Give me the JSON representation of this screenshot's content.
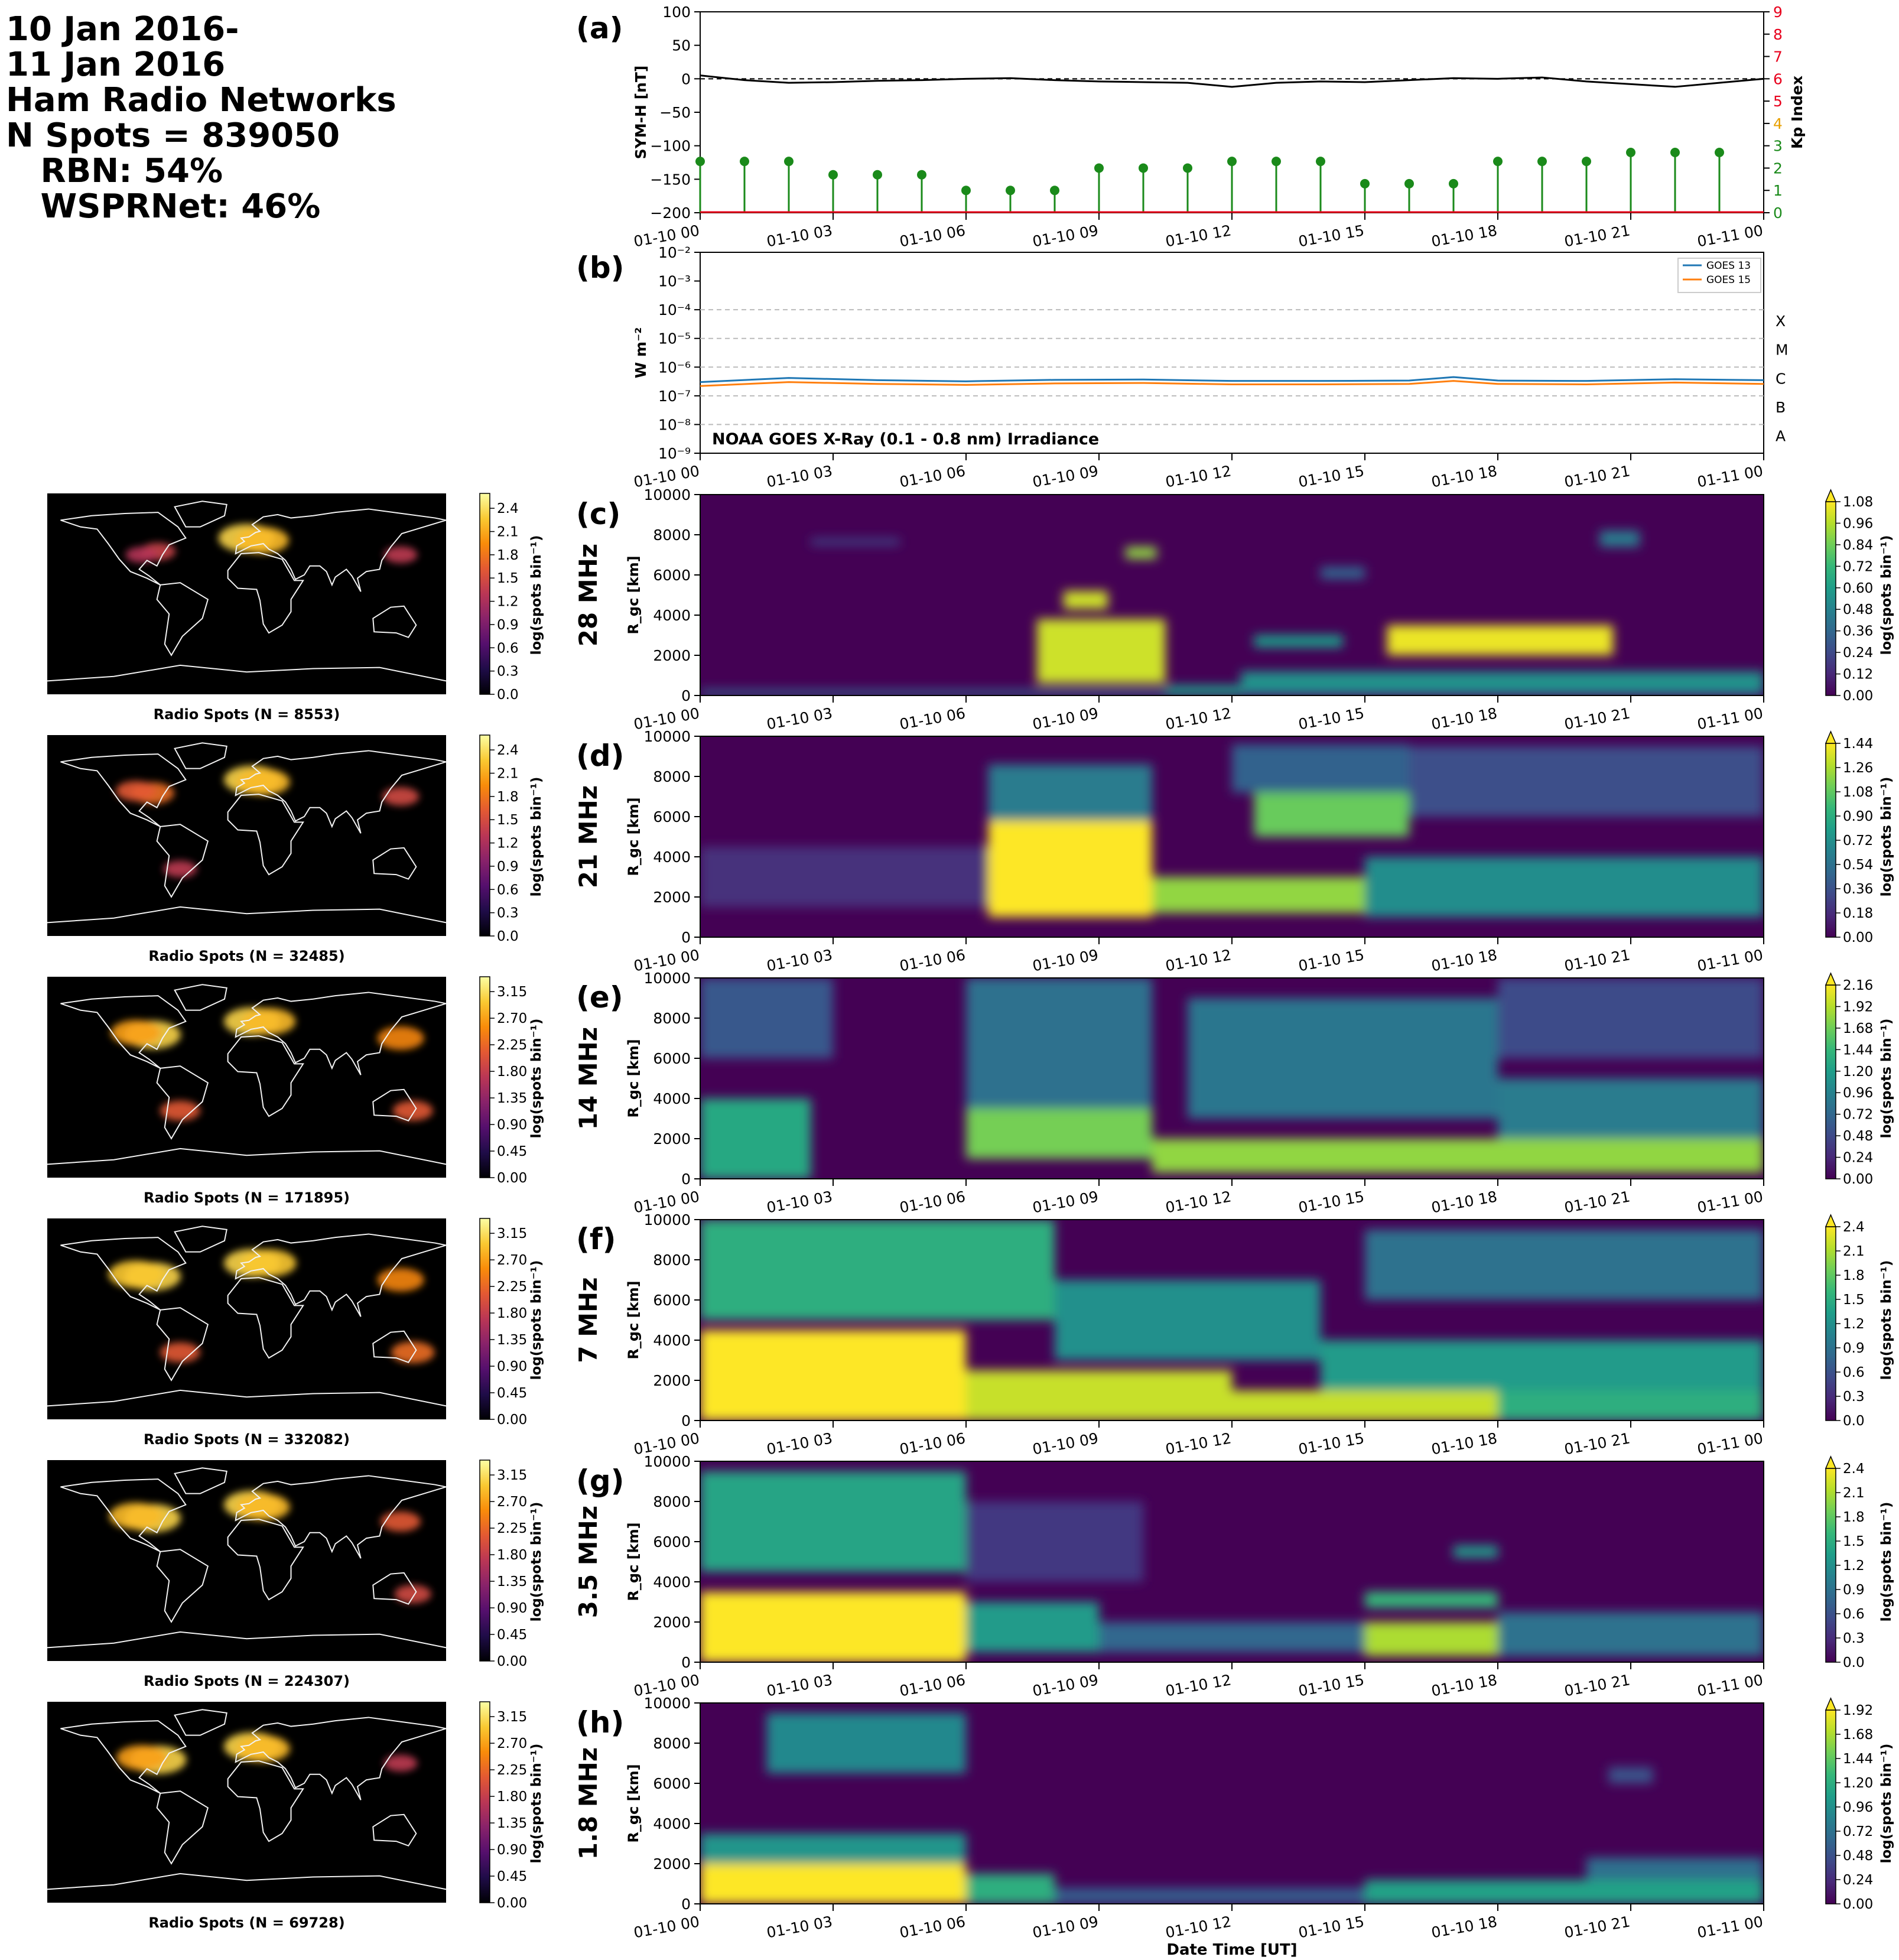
{
  "header": {
    "lines": [
      "10 Jan 2016-",
      "11 Jan 2016",
      "Ham Radio Networks",
      "N Spots = 839050",
      "   RBN: 54%",
      "   WSPRNet: 46%"
    ]
  },
  "time_ticks": [
    "01-10 00",
    "01-10 03",
    "01-10 06",
    "01-10 09",
    "01-10 12",
    "01-10 15",
    "01-10 18",
    "01-10 21",
    "01-11 00"
  ],
  "xlabel_bottom": "Date Time [UT]",
  "colors": {
    "symh_line": "#000000",
    "kp_stem": "#1a8a1a",
    "goes13": "#1f77b4",
    "goes15": "#ff7f0e",
    "kp_axis_red": "#e8001c",
    "kp_axis_orange": "#e8a000",
    "kp_axis_green": "#1a8a1a"
  },
  "chart_data": [
    {
      "id": "a",
      "label": "(a)",
      "type": "line",
      "ylabel": "SYM-H [nT]",
      "ylim": [
        -200,
        100
      ],
      "yticks": [
        "100",
        "50",
        "0",
        "−50",
        "−100",
        "−150",
        "−200"
      ],
      "x_hours": [
        0,
        1,
        2,
        3,
        4,
        5,
        6,
        7,
        8,
        9,
        10,
        11,
        12,
        13,
        14,
        15,
        16,
        17,
        18,
        19,
        20,
        21,
        22,
        23,
        24
      ],
      "symh": [
        5,
        -2,
        -6,
        -5,
        -3,
        -2,
        0,
        1,
        -2,
        -4,
        -5,
        -6,
        -12,
        -6,
        -4,
        -5,
        -2,
        1,
        0,
        2,
        -4,
        -8,
        -12,
        -6,
        0
      ],
      "y2label": "Kp Index",
      "y2lim": [
        0,
        9
      ],
      "y2ticks": [
        "0",
        "1",
        "2",
        "3",
        "4",
        "5",
        "6",
        "7",
        "8",
        "9"
      ],
      "kp_x_hours": [
        0,
        1,
        2,
        3,
        4,
        5,
        6,
        7,
        8,
        9,
        10,
        11,
        12,
        13,
        14,
        15,
        16,
        17,
        18,
        19,
        20,
        21,
        22,
        23
      ],
      "kp": [
        2.3,
        2.3,
        2.3,
        1.7,
        1.7,
        1.7,
        1.0,
        1.0,
        1.0,
        2.0,
        2.0,
        2.0,
        2.3,
        2.3,
        2.3,
        1.3,
        1.3,
        1.3,
        2.3,
        2.3,
        2.3,
        2.7,
        2.7,
        2.7
      ]
    },
    {
      "id": "b",
      "label": "(b)",
      "type": "line",
      "ylabel": "W m⁻²",
      "log_scale": true,
      "ylim": [
        1e-09,
        0.01
      ],
      "yticks": [
        "10⁻²",
        "10⁻³",
        "10⁻⁴",
        "10⁻⁵",
        "10⁻⁶",
        "10⁻⁷",
        "10⁻⁸",
        "10⁻⁹"
      ],
      "flare_classes": [
        "X",
        "M",
        "C",
        "B",
        "A"
      ],
      "annotation": "NOAA GOES X-Ray (0.1 - 0.8 nm) Irradiance",
      "legend": [
        "GOES 13",
        "GOES 15"
      ],
      "legend_position": "top-right",
      "series": [
        {
          "name": "GOES 13",
          "x_hours": [
            0,
            2,
            4,
            6,
            8,
            10,
            12,
            14,
            16,
            17,
            18,
            20,
            22,
            24
          ],
          "values": [
            3e-07,
            4.2e-07,
            3.5e-07,
            3.2e-07,
            3.6e-07,
            3.7e-07,
            3.3e-07,
            3.3e-07,
            3.4e-07,
            4.5e-07,
            3.4e-07,
            3.3e-07,
            3.8e-07,
            3.5e-07
          ]
        },
        {
          "name": "GOES 15",
          "x_hours": [
            0,
            2,
            4,
            6,
            8,
            10,
            12,
            14,
            16,
            17,
            18,
            20,
            22,
            24
          ],
          "values": [
            2.2e-07,
            3e-07,
            2.6e-07,
            2.4e-07,
            2.7e-07,
            2.8e-07,
            2.5e-07,
            2.5e-07,
            2.6e-07,
            3.3e-07,
            2.6e-07,
            2.5e-07,
            2.9e-07,
            2.6e-07
          ]
        }
      ]
    },
    {
      "id": "c",
      "label": "(c)",
      "type": "heatmap",
      "band": "28 MHz",
      "ylabel": "R_gc [km]",
      "ylim": [
        0,
        10000
      ],
      "yticks": [
        "10000",
        "8000",
        "6000",
        "4000",
        "2000",
        "0"
      ],
      "cbar_label": "log(spots bin⁻¹)",
      "cbar_max": 1.08,
      "cbar_ticks": [
        "1.08",
        "0.96",
        "0.84",
        "0.72",
        "0.60",
        "0.48",
        "0.36",
        "0.24",
        "0.12",
        "0.00"
      ],
      "map_title": "Radio Spots (N = 8553)",
      "map_cbar_ticks": [
        "2.4",
        "2.1",
        "1.8",
        "1.5",
        "1.2",
        "0.9",
        "0.6",
        "0.3",
        "0.0"
      ],
      "blobs": [
        {
          "t": [
            0,
            24
          ],
          "r": [
            0,
            300
          ],
          "v": 0.35
        },
        {
          "t": [
            7.6,
            10.5
          ],
          "r": [
            600,
            3800
          ],
          "v": 1.0
        },
        {
          "t": [
            8.2,
            9.2
          ],
          "r": [
            4300,
            5200
          ],
          "v": 1.0
        },
        {
          "t": [
            9.6,
            10.3
          ],
          "r": [
            6800,
            7400
          ],
          "v": 0.9
        },
        {
          "t": [
            10.5,
            12.2
          ],
          "r": [
            0,
            500
          ],
          "v": 0.6
        },
        {
          "t": [
            12.2,
            24
          ],
          "r": [
            200,
            1200
          ],
          "v": 0.55
        },
        {
          "t": [
            12.5,
            14.5
          ],
          "r": [
            2400,
            3000
          ],
          "v": 0.6
        },
        {
          "t": [
            15.5,
            20.6
          ],
          "r": [
            2000,
            3500
          ],
          "v": 1.05
        },
        {
          "t": [
            14,
            15
          ],
          "r": [
            5800,
            6400
          ],
          "v": 0.35
        },
        {
          "t": [
            20.3,
            21.2
          ],
          "r": [
            7400,
            8200
          ],
          "v": 0.45
        },
        {
          "t": [
            2.5,
            4.5
          ],
          "r": [
            7500,
            7800
          ],
          "v": 0.25
        }
      ]
    },
    {
      "id": "d",
      "label": "(d)",
      "type": "heatmap",
      "band": "21 MHz",
      "ylabel": "R_gc [km]",
      "ylim": [
        0,
        10000
      ],
      "yticks": [
        "10000",
        "8000",
        "6000",
        "4000",
        "2000",
        "0"
      ],
      "cbar_label": "log(spots bin⁻¹)",
      "cbar_max": 1.44,
      "cbar_ticks": [
        "1.44",
        "1.26",
        "1.08",
        "0.90",
        "0.72",
        "0.54",
        "0.36",
        "0.18",
        "0.00"
      ],
      "map_title": "Radio Spots (N = 32485)",
      "map_cbar_ticks": [
        "2.4",
        "2.1",
        "1.8",
        "1.5",
        "1.2",
        "0.9",
        "0.6",
        "0.3",
        "0.0"
      ],
      "blobs": [
        {
          "t": [
            6.5,
            10.2
          ],
          "r": [
            1000,
            5800
          ],
          "v": 1.45
        },
        {
          "t": [
            6.5,
            10.2
          ],
          "r": [
            5800,
            8600
          ],
          "v": 0.6
        },
        {
          "t": [
            10.2,
            15
          ],
          "r": [
            1200,
            3000
          ],
          "v": 1.2
        },
        {
          "t": [
            12.5,
            16
          ],
          "r": [
            5000,
            7200
          ],
          "v": 1.1
        },
        {
          "t": [
            12,
            16
          ],
          "r": [
            7200,
            9600
          ],
          "v": 0.45
        },
        {
          "t": [
            15,
            24
          ],
          "r": [
            1000,
            4000
          ],
          "v": 0.7
        },
        {
          "t": [
            16,
            24
          ],
          "r": [
            6000,
            9500
          ],
          "v": 0.35
        },
        {
          "t": [
            0,
            6.5
          ],
          "r": [
            1500,
            4500
          ],
          "v": 0.2
        }
      ]
    },
    {
      "id": "e",
      "label": "(e)",
      "type": "heatmap",
      "band": "14 MHz",
      "ylabel": "R_gc [km]",
      "ylim": [
        0,
        10000
      ],
      "yticks": [
        "10000",
        "8000",
        "6000",
        "4000",
        "2000",
        "0"
      ],
      "cbar_label": "log(spots bin⁻¹)",
      "cbar_max": 2.16,
      "cbar_ticks": [
        "2.16",
        "1.92",
        "1.68",
        "1.44",
        "1.20",
        "0.96",
        "0.72",
        "0.48",
        "0.24",
        "0.00"
      ],
      "map_title": "Radio Spots (N = 171895)",
      "map_cbar_ticks": [
        "3.15",
        "2.70",
        "2.25",
        "1.80",
        "1.35",
        "0.90",
        "0.45",
        "0.00"
      ],
      "blobs": [
        {
          "t": [
            0,
            2.5
          ],
          "r": [
            0,
            4000
          ],
          "v": 1.3
        },
        {
          "t": [
            0,
            3
          ],
          "r": [
            6000,
            10000
          ],
          "v": 0.6
        },
        {
          "t": [
            6,
            10.2
          ],
          "r": [
            1000,
            3500
          ],
          "v": 1.7
        },
        {
          "t": [
            6,
            10.2
          ],
          "r": [
            3500,
            10000
          ],
          "v": 0.8
        },
        {
          "t": [
            10.2,
            24
          ],
          "r": [
            300,
            2000
          ],
          "v": 1.8
        },
        {
          "t": [
            11,
            18
          ],
          "r": [
            3000,
            9000
          ],
          "v": 0.85
        },
        {
          "t": [
            18,
            24
          ],
          "r": [
            2000,
            5000
          ],
          "v": 0.9
        },
        {
          "t": [
            18,
            24
          ],
          "r": [
            6000,
            10000
          ],
          "v": 0.5
        }
      ]
    },
    {
      "id": "f",
      "label": "(f)",
      "type": "heatmap",
      "band": "7 MHz",
      "ylabel": "R_gc [km]",
      "ylim": [
        0,
        10000
      ],
      "yticks": [
        "10000",
        "8000",
        "6000",
        "4000",
        "2000",
        "0"
      ],
      "cbar_label": "log(spots bin⁻¹)",
      "cbar_max": 2.4,
      "cbar_ticks": [
        "2.4",
        "2.1",
        "1.8",
        "1.5",
        "1.2",
        "0.9",
        "0.6",
        "0.3",
        "0.0"
      ],
      "map_title": "Radio Spots (N = 332082)",
      "map_cbar_ticks": [
        "3.15",
        "2.70",
        "2.25",
        "1.80",
        "1.35",
        "0.90",
        "0.45",
        "0.00"
      ],
      "blobs": [
        {
          "t": [
            0,
            6
          ],
          "r": [
            0,
            4500
          ],
          "v": 2.4
        },
        {
          "t": [
            0,
            8
          ],
          "r": [
            5000,
            10000
          ],
          "v": 1.5
        },
        {
          "t": [
            6,
            12
          ],
          "r": [
            0,
            2500
          ],
          "v": 2.2
        },
        {
          "t": [
            12,
            18
          ],
          "r": [
            0,
            1500
          ],
          "v": 2.2
        },
        {
          "t": [
            8,
            14
          ],
          "r": [
            3000,
            7000
          ],
          "v": 1.2
        },
        {
          "t": [
            14,
            24
          ],
          "r": [
            1500,
            4000
          ],
          "v": 1.3
        },
        {
          "t": [
            18,
            24
          ],
          "r": [
            0,
            1500
          ],
          "v": 1.5
        },
        {
          "t": [
            15,
            24
          ],
          "r": [
            6000,
            9500
          ],
          "v": 0.9
        }
      ]
    },
    {
      "id": "g",
      "label": "(g)",
      "type": "heatmap",
      "band": "3.5 MHz",
      "ylabel": "R_gc [km]",
      "ylim": [
        0,
        10000
      ],
      "yticks": [
        "10000",
        "8000",
        "6000",
        "4000",
        "2000",
        "0"
      ],
      "cbar_label": "log(spots bin⁻¹)",
      "cbar_max": 2.4,
      "cbar_ticks": [
        "2.4",
        "2.1",
        "1.8",
        "1.5",
        "1.2",
        "0.9",
        "0.6",
        "0.3",
        "0.0"
      ],
      "map_title": "Radio Spots (N = 224307)",
      "map_cbar_ticks": [
        "3.15",
        "2.70",
        "2.25",
        "1.80",
        "1.35",
        "0.90",
        "0.45",
        "0.00"
      ],
      "blobs": [
        {
          "t": [
            0,
            6
          ],
          "r": [
            0,
            3500
          ],
          "v": 2.4
        },
        {
          "t": [
            0,
            6
          ],
          "r": [
            4500,
            9500
          ],
          "v": 1.4
        },
        {
          "t": [
            6,
            9
          ],
          "r": [
            500,
            3000
          ],
          "v": 1.3
        },
        {
          "t": [
            6,
            10
          ],
          "r": [
            4000,
            8000
          ],
          "v": 0.4
        },
        {
          "t": [
            9,
            15
          ],
          "r": [
            500,
            2000
          ],
          "v": 0.8
        },
        {
          "t": [
            15,
            18
          ],
          "r": [
            300,
            2000
          ],
          "v": 2.1
        },
        {
          "t": [
            15,
            18
          ],
          "r": [
            2700,
            3500
          ],
          "v": 1.6
        },
        {
          "t": [
            17,
            18
          ],
          "r": [
            5200,
            5800
          ],
          "v": 1.3
        },
        {
          "t": [
            18,
            24
          ],
          "r": [
            300,
            2500
          ],
          "v": 0.9
        }
      ]
    },
    {
      "id": "h",
      "label": "(h)",
      "type": "heatmap",
      "band": "1.8 MHz",
      "ylabel": "R_gc [km]",
      "ylim": [
        0,
        10000
      ],
      "yticks": [
        "10000",
        "8000",
        "6000",
        "4000",
        "2000",
        "0"
      ],
      "cbar_label": "log(spots bin⁻¹)",
      "cbar_max": 1.92,
      "cbar_ticks": [
        "1.92",
        "1.68",
        "1.44",
        "1.20",
        "0.96",
        "0.72",
        "0.48",
        "0.24",
        "0.00"
      ],
      "map_title": "Radio Spots (N = 69728)",
      "map_cbar_ticks": [
        "3.15",
        "2.70",
        "2.25",
        "1.80",
        "1.35",
        "0.90",
        "0.45",
        "0.00"
      ],
      "blobs": [
        {
          "t": [
            0,
            6
          ],
          "r": [
            0,
            2000
          ],
          "v": 1.95
        },
        {
          "t": [
            0,
            6
          ],
          "r": [
            2000,
            3500
          ],
          "v": 1.0
        },
        {
          "t": [
            1.5,
            6
          ],
          "r": [
            6500,
            9500
          ],
          "v": 0.9
        },
        {
          "t": [
            6,
            8
          ],
          "r": [
            0,
            1500
          ],
          "v": 1.2
        },
        {
          "t": [
            8,
            15
          ],
          "r": [
            0,
            800
          ],
          "v": 0.55
        },
        {
          "t": [
            15,
            24
          ],
          "r": [
            0,
            1200
          ],
          "v": 1.1
        },
        {
          "t": [
            20,
            24
          ],
          "r": [
            1200,
            2300
          ],
          "v": 0.7
        },
        {
          "t": [
            20.5,
            21.5
          ],
          "r": [
            6000,
            6800
          ],
          "v": 0.5
        }
      ]
    }
  ]
}
